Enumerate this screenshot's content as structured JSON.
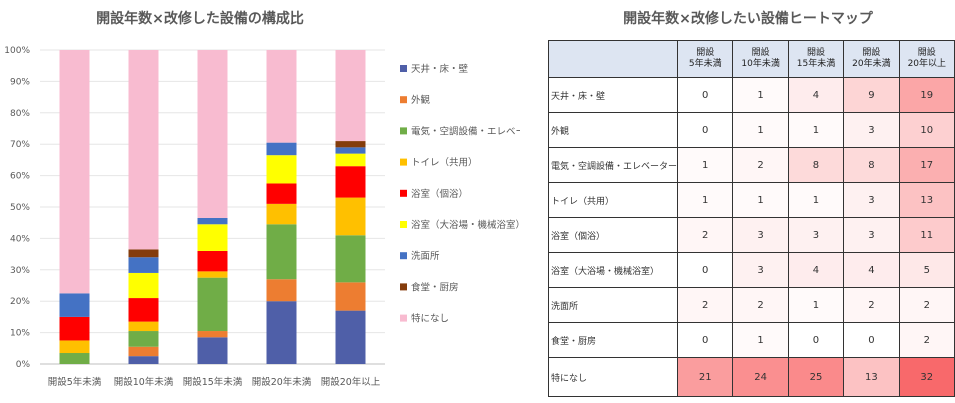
{
  "left_title": "開設年数×改修した設備の構成比",
  "right_title": "開設年数×改修したい設備ヒートマップ",
  "chart_data": [
    {
      "type": "bar",
      "stacked": true,
      "percent": true,
      "title": "開設年数×改修した設備の構成比",
      "categories": [
        "開設5年未満",
        "開設10年未満",
        "開設15年未満",
        "開設20年未満",
        "開設20年以上"
      ],
      "ylim": [
        0,
        100
      ],
      "yticks": [
        "0%",
        "10%",
        "20%",
        "30%",
        "40%",
        "50%",
        "60%",
        "70%",
        "80%",
        "90%",
        "100%"
      ],
      "legend_position": "right",
      "series": [
        {
          "name": "天井・床・壁",
          "color": "#4f5fa8",
          "values": [
            0,
            2.5,
            8.5,
            20,
            17
          ]
        },
        {
          "name": "外観",
          "color": "#ed7d31",
          "values": [
            0,
            3,
            2,
            7,
            9
          ]
        },
        {
          "name": "電気・空調設備・エレベーター",
          "color": "#70ad47",
          "values": [
            3.5,
            5,
            17,
            17.5,
            15
          ]
        },
        {
          "name": "トイレ（共用）",
          "color": "#ffc000",
          "values": [
            4,
            3,
            2,
            6.5,
            12
          ]
        },
        {
          "name": "浴室（個浴）",
          "color": "#ff0000",
          "values": [
            7.5,
            7.5,
            6.5,
            6.5,
            10
          ]
        },
        {
          "name": "浴室（大浴場・機械浴室）",
          "color": "#ffff00",
          "values": [
            0,
            8,
            8.5,
            9,
            4
          ]
        },
        {
          "name": "洗面所",
          "color": "#4472c4",
          "values": [
            7.5,
            5,
            2,
            4,
            2
          ]
        },
        {
          "name": "食堂・厨房",
          "color": "#843c0c",
          "values": [
            0,
            2.5,
            0,
            0,
            2
          ]
        },
        {
          "name": "特になし",
          "color": "#f8bbd0",
          "values": [
            77.5,
            63.5,
            53.5,
            29.5,
            29
          ]
        }
      ]
    },
    {
      "type": "heatmap",
      "title": "開設年数×改修したい設備ヒートマップ",
      "columns": [
        "開設\n5年未満",
        "開設\n10年未満",
        "開設\n15年未満",
        "開設\n20年未満",
        "開設\n20年以上"
      ],
      "rows": [
        "天井・床・壁",
        "外観",
        "電気・空調設備・エレベーター",
        "トイレ（共用）",
        "浴室（個浴）",
        "浴室（大浴場・機械浴室）",
        "洗面所",
        "食堂・厨房",
        "特になし"
      ],
      "values": [
        [
          0,
          1,
          4,
          9,
          19
        ],
        [
          0,
          1,
          1,
          3,
          10
        ],
        [
          1,
          2,
          8,
          8,
          17
        ],
        [
          1,
          1,
          1,
          3,
          13
        ],
        [
          2,
          3,
          3,
          3,
          11
        ],
        [
          0,
          3,
          4,
          4,
          5
        ],
        [
          2,
          2,
          1,
          2,
          2
        ],
        [
          0,
          1,
          0,
          0,
          2
        ],
        [
          21,
          24,
          25,
          13,
          32
        ]
      ],
      "color_low": "#ffffff",
      "color_high": "#f8696b"
    }
  ]
}
